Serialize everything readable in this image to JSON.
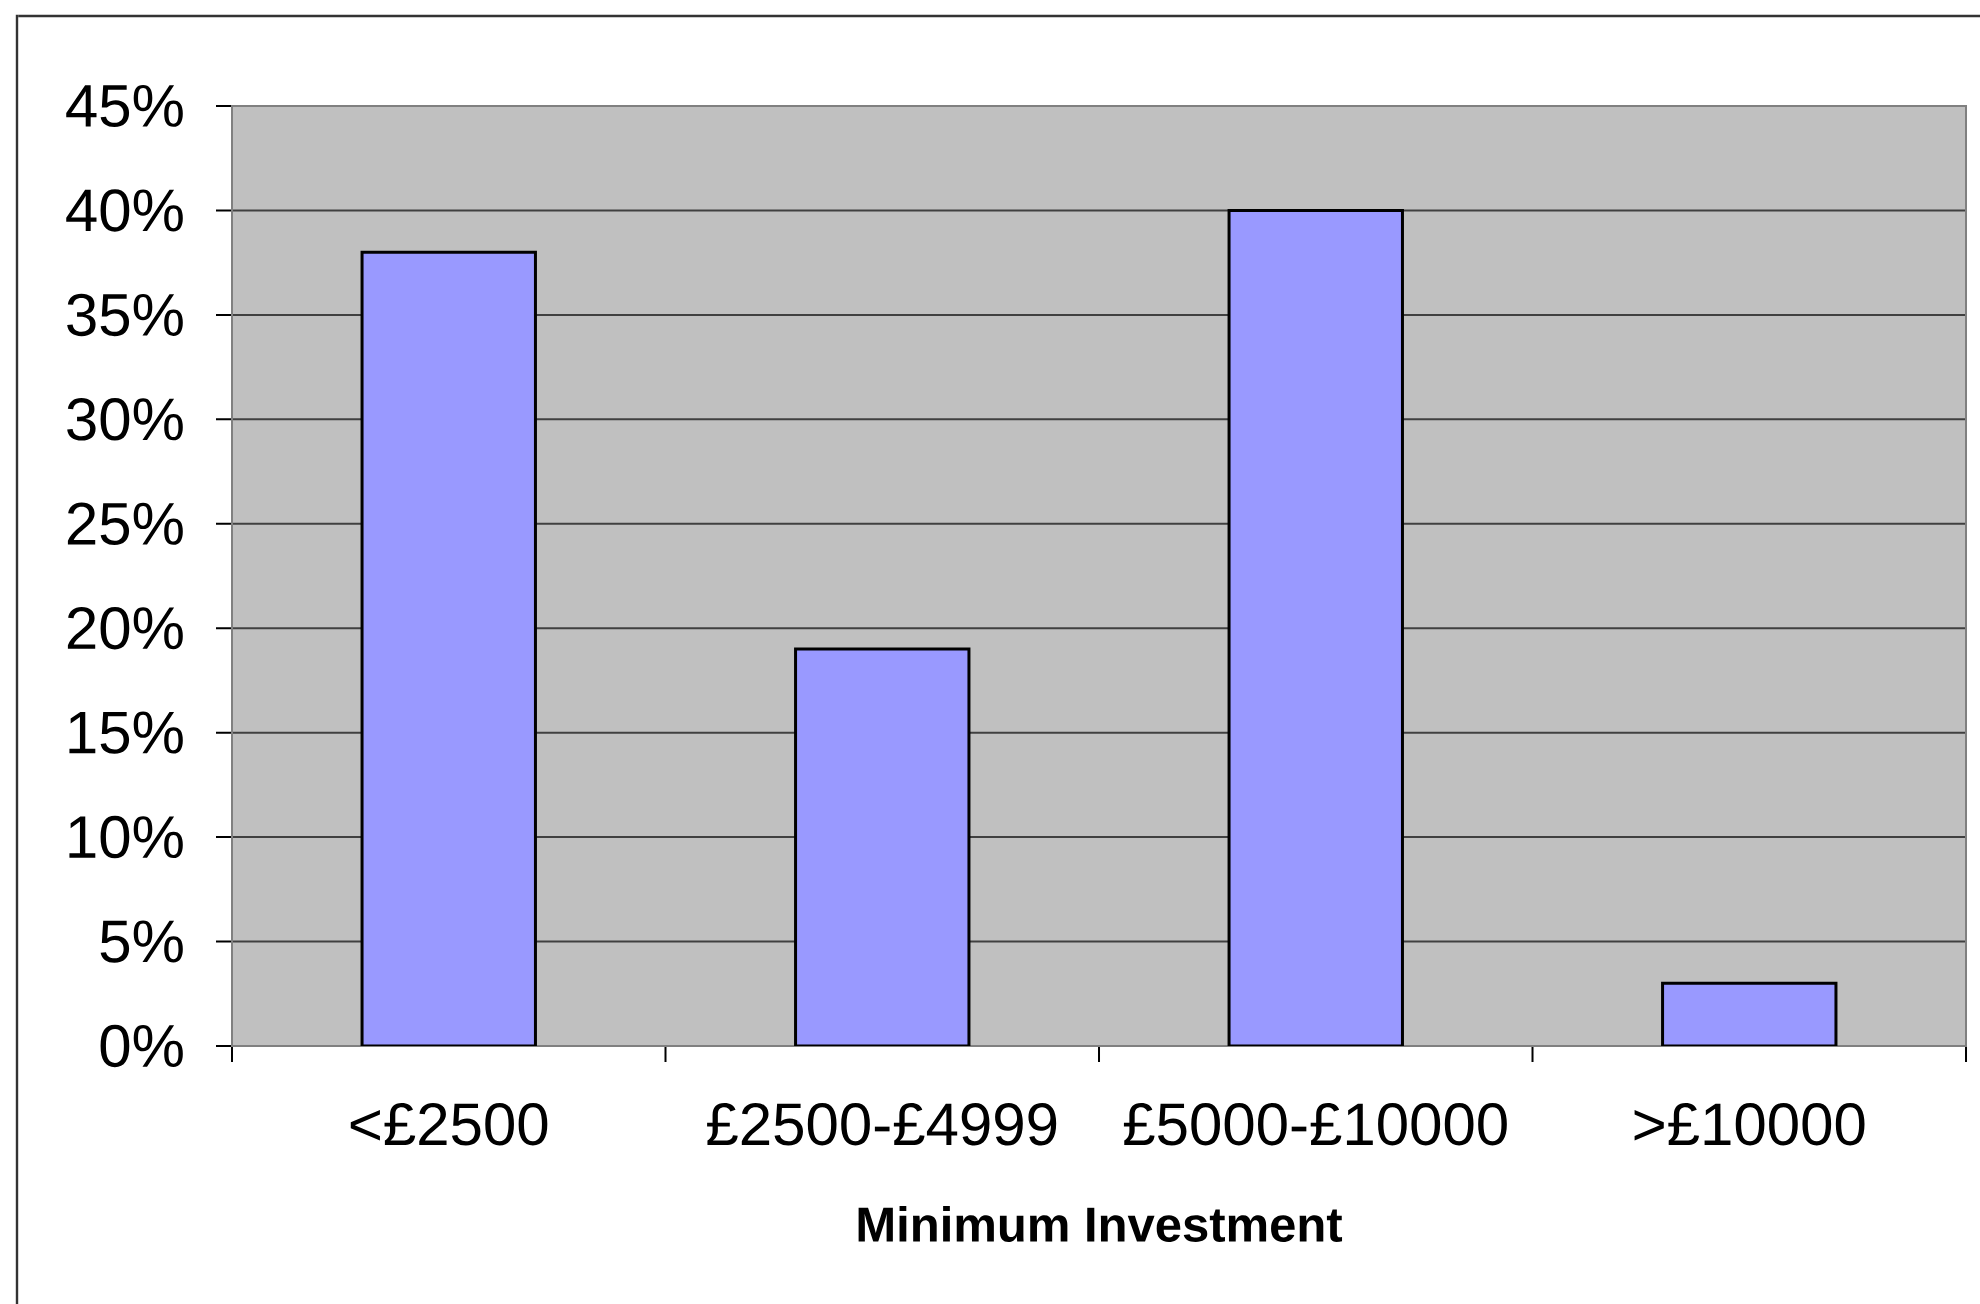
{
  "chart_data": {
    "type": "bar",
    "xlabel": "Minimum Investment",
    "categories": [
      "<£2500",
      "£2500-£4999",
      "£5000-£10000",
      ">£10000"
    ],
    "values": [
      38,
      19,
      40,
      3
    ],
    "color": "#9999ff",
    "ylim": [
      0,
      45
    ],
    "yticks": [
      {
        "value": 0,
        "label": "0%"
      },
      {
        "value": 5,
        "label": "5%"
      },
      {
        "value": 10,
        "label": "10%"
      },
      {
        "value": 15,
        "label": "15%"
      },
      {
        "value": 20,
        "label": "20%"
      },
      {
        "value": 25,
        "label": "25%"
      },
      {
        "value": 30,
        "label": "30%"
      },
      {
        "value": 35,
        "label": "35%"
      },
      {
        "value": 40,
        "label": "40%"
      },
      {
        "value": 45,
        "label": "45%"
      }
    ],
    "grid": "y"
  }
}
